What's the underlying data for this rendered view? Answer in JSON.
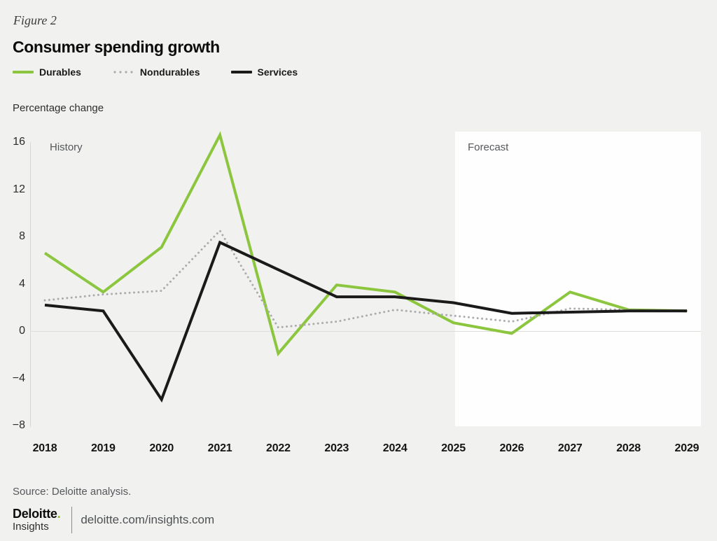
{
  "figure_label": "Figure 2",
  "title": "Consumer spending growth",
  "axis_unit": "Percentage change",
  "regions": {
    "history": "History",
    "forecast": "Forecast"
  },
  "legend": {
    "items": [
      {
        "label": "Durables",
        "color": "#8cc63f",
        "style": "solid"
      },
      {
        "label": "Nondurables",
        "color": "#ababab",
        "style": "dotted"
      },
      {
        "label": "Services",
        "color": "#1a1a1a",
        "style": "solid"
      }
    ]
  },
  "chart_data": {
    "type": "line",
    "title": "Consumer spending growth",
    "xlabel": "",
    "ylabel": "Percentage change",
    "x": [
      2018,
      2019,
      2020,
      2021,
      2022,
      2023,
      2024,
      2025,
      2026,
      2027,
      2028,
      2029
    ],
    "yticks": [
      16,
      12,
      8,
      4,
      0,
      -4,
      -8
    ],
    "ylim": [
      -8,
      16
    ],
    "grid": "zero-line-only",
    "legend_position": "top-left",
    "forecast_start_year": 2025,
    "history_label": "History",
    "forecast_label": "Forecast",
    "series": [
      {
        "name": "Durables",
        "color": "#8cc63f",
        "style": "solid",
        "values": [
          6.6,
          3.3,
          7.1,
          16.6,
          -1.9,
          3.9,
          3.3,
          0.7,
          -0.2,
          3.3,
          1.8,
          1.7
        ]
      },
      {
        "name": "Nondurables",
        "color": "#ababab",
        "style": "dotted",
        "values": [
          2.6,
          3.1,
          3.4,
          8.5,
          0.3,
          0.8,
          1.8,
          1.3,
          0.8,
          1.9,
          1.8,
          1.7
        ]
      },
      {
        "name": "Services",
        "color": "#1a1a1a",
        "style": "solid",
        "values": [
          2.2,
          1.7,
          -5.8,
          7.5,
          5.2,
          2.9,
          2.9,
          2.4,
          1.5,
          1.6,
          1.7,
          1.7
        ]
      }
    ]
  },
  "source": "Source: Deloitte analysis.",
  "footer": {
    "brand": "Deloitte",
    "brand_dot": ".",
    "brand_sub": "Insights",
    "url": "deloitte.com/insights.com",
    "brand_dot_color": "#86bc25"
  }
}
